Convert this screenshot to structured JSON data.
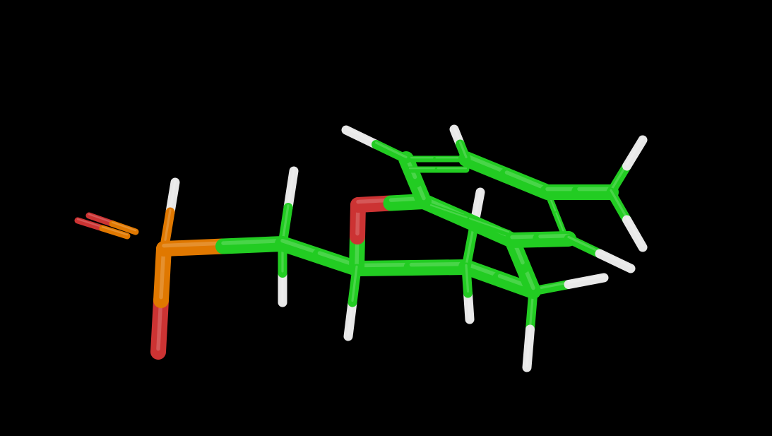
{
  "viewer": {
    "background": "#000000",
    "representation": "sticks",
    "element_colors": {
      "C": "#22cc22",
      "O": "#cc3333",
      "P": "#e07800",
      "H": "#e8e8e8"
    },
    "molecule": {
      "description_elements": [
        "P",
        "O",
        "C",
        "H"
      ],
      "atom_count_visible": {
        "P": 1,
        "O": 4,
        "C": 10,
        "H": 13
      }
    }
  }
}
